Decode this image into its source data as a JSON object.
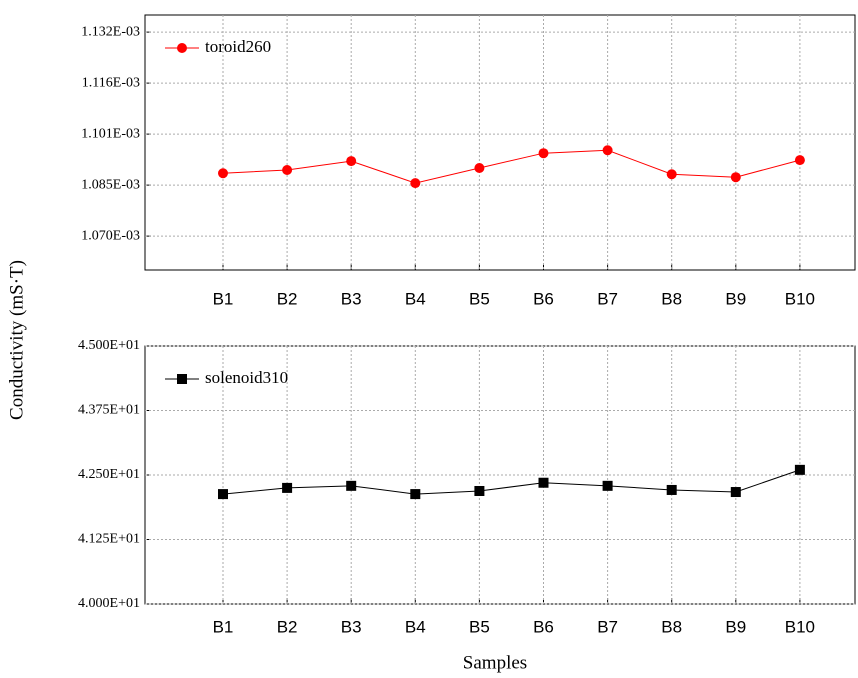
{
  "chart_data": [
    {
      "type": "line",
      "ylabel": "Conductivity (mS·T)",
      "categories": [
        "B1",
        "B2",
        "B3",
        "B4",
        "B5",
        "B6",
        "B7",
        "B8",
        "B9",
        "B10"
      ],
      "series": [
        {
          "name": "toroid260",
          "color": "#ff0000",
          "marker": "circle",
          "values": [
            0.0010889,
            0.0010899,
            0.0010926,
            0.0010859,
            0.0010905,
            0.001095,
            0.0010959,
            0.0010886,
            0.0010877,
            0.0010929
          ]
        }
      ],
      "ylim": [
        0.0010595,
        0.001137
      ],
      "yticks": [
        {
          "value": 0.0010698,
          "label": "1.070E-03"
        },
        {
          "value": 0.0010853,
          "label": "1.085E-03"
        },
        {
          "value": 0.0011008,
          "label": "1.101E-03"
        },
        {
          "value": 0.0011163,
          "label": "1.116E-03"
        },
        {
          "value": 0.0011318,
          "label": "1.132E-03"
        }
      ],
      "grid": true,
      "legend": "upper left"
    },
    {
      "type": "line",
      "xlabel": "Samples",
      "categories": [
        "B1",
        "B2",
        "B3",
        "B4",
        "B5",
        "B6",
        "B7",
        "B8",
        "B9",
        "B10"
      ],
      "series": [
        {
          "name": "solenoid310",
          "color": "#000000",
          "marker": "square",
          "values": [
            42.13,
            42.25,
            42.29,
            42.13,
            42.19,
            42.35,
            42.29,
            42.21,
            42.17,
            42.6
          ]
        }
      ],
      "ylim": [
        40,
        45
      ],
      "yticks": [
        {
          "value": 40,
          "label": "4.000E+01"
        },
        {
          "value": 41.25,
          "label": "4.125E+01"
        },
        {
          "value": 42.5,
          "label": "4.250E+01"
        },
        {
          "value": 43.75,
          "label": "4.375E+01"
        },
        {
          "value": 45,
          "label": "4.500E+01"
        }
      ],
      "grid": true,
      "legend": "upper left"
    }
  ]
}
